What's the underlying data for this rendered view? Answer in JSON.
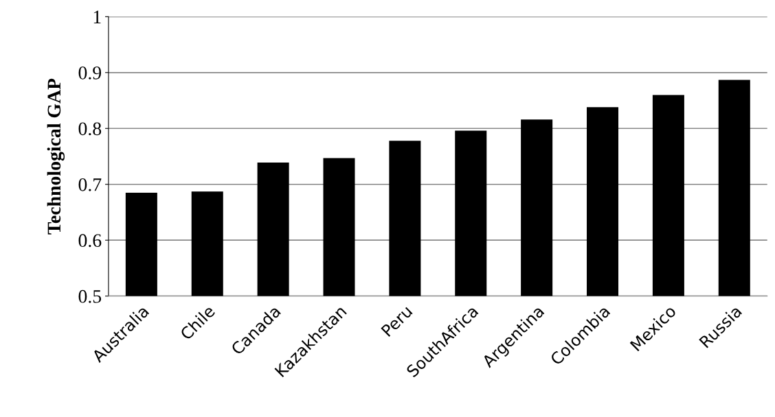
{
  "chart_data": {
    "type": "bar",
    "ylabel": "Technological GAP",
    "categories": [
      "Australia",
      "Chile",
      "Canada",
      "Kazakhstan",
      "Peru",
      "SouthAfrica",
      "Argentina",
      "Colombia",
      "Mexico",
      "Russia"
    ],
    "values": [
      0.685,
      0.687,
      0.739,
      0.747,
      0.778,
      0.796,
      0.816,
      0.838,
      0.86,
      0.887
    ],
    "color": "#000000",
    "ylim": [
      0.5,
      1
    ],
    "yticks": [
      0.5,
      0.6,
      0.7,
      0.8,
      0.9,
      1
    ],
    "grid": "y"
  }
}
